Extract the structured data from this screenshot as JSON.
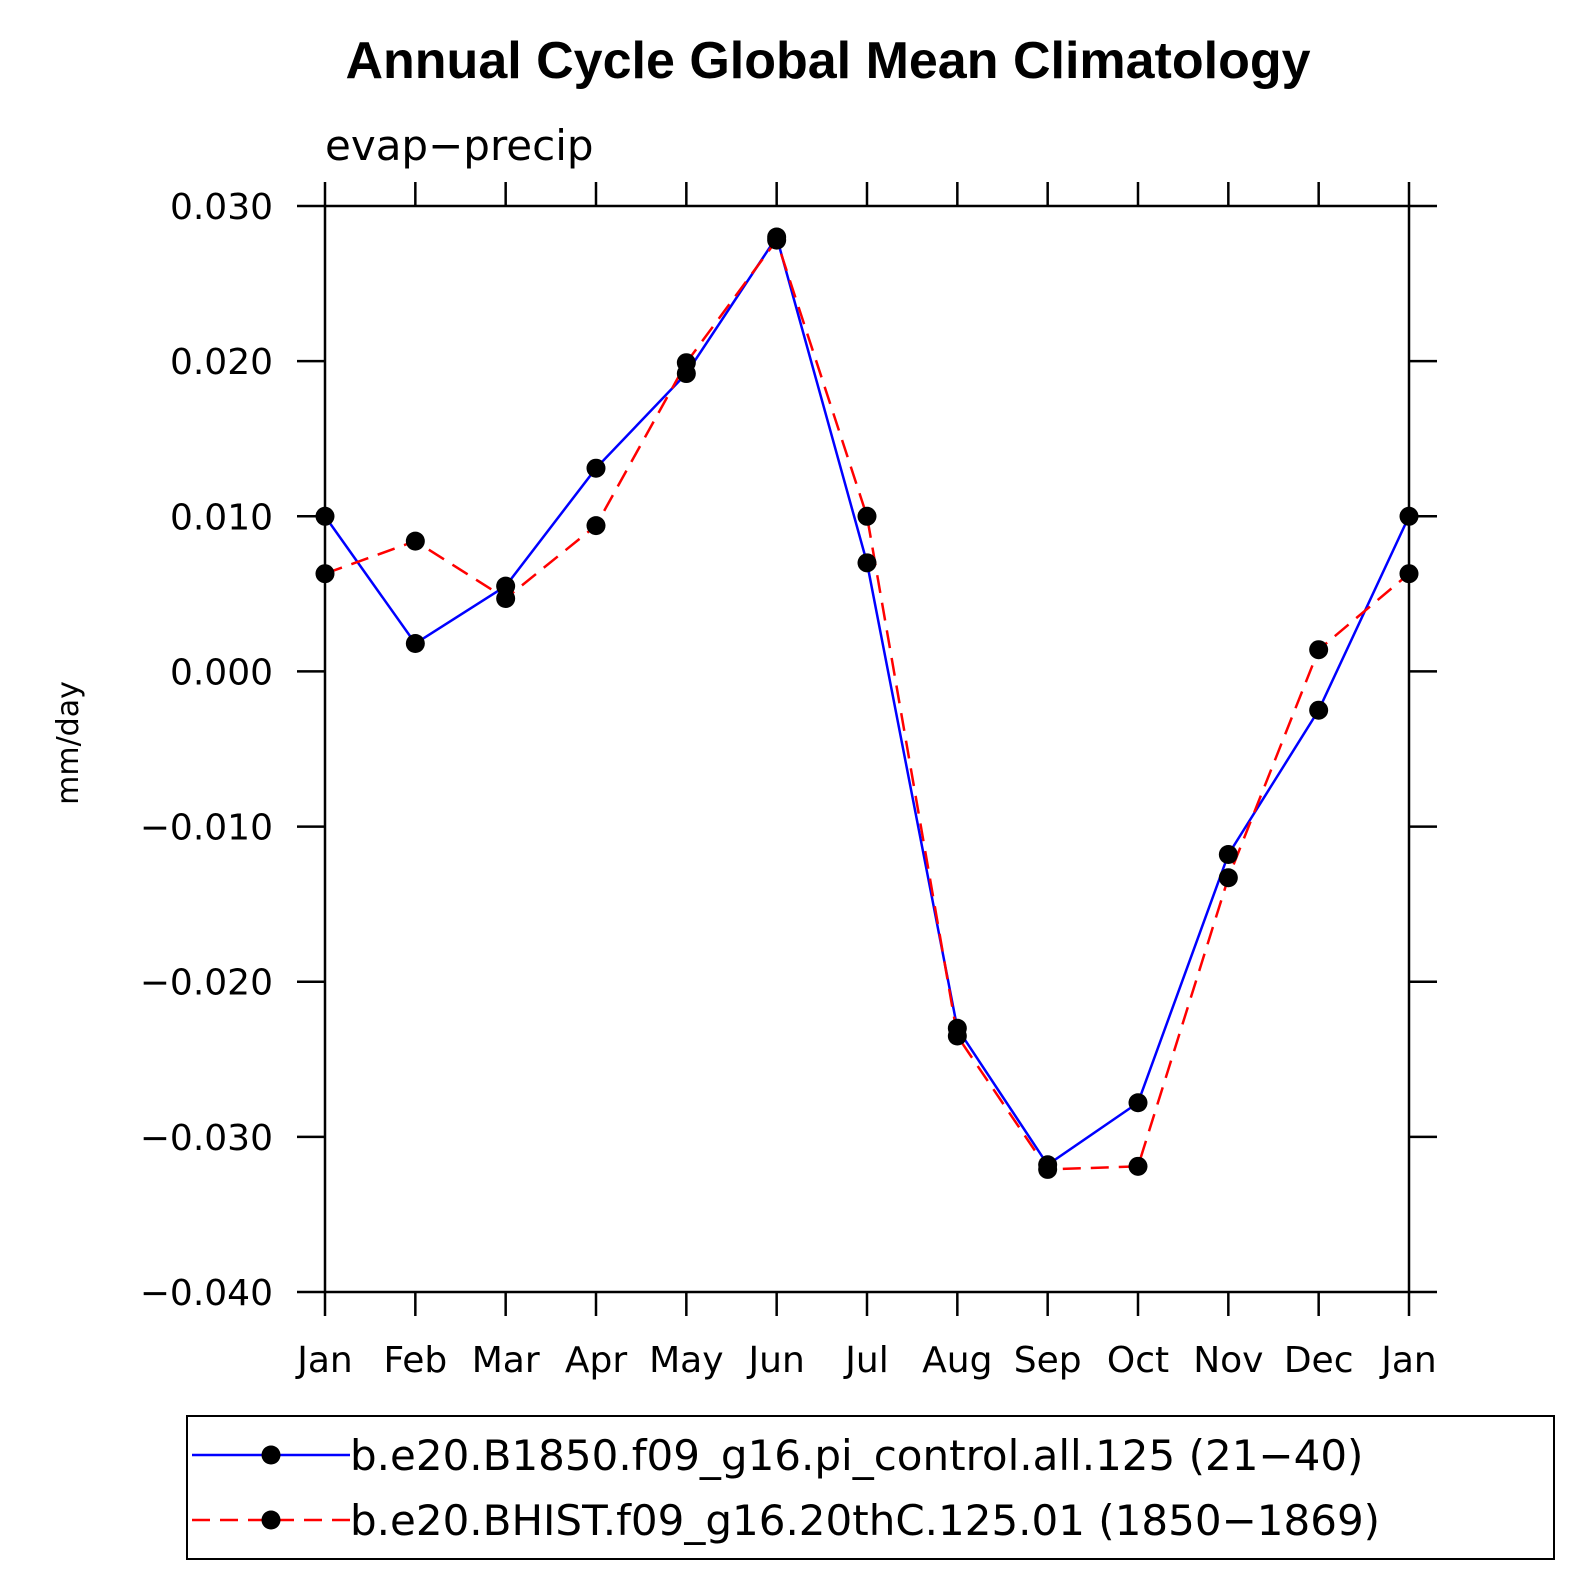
{
  "chart_data": {
    "type": "line",
    "title": "Annual Cycle Global Mean Climatology",
    "subtitle": "evap−precip",
    "xlabel": "",
    "ylabel": "mm/day",
    "categories": [
      "Jan",
      "Feb",
      "Mar",
      "Apr",
      "May",
      "Jun",
      "Jul",
      "Aug",
      "Sep",
      "Oct",
      "Nov",
      "Dec",
      "Jan"
    ],
    "ylim": [
      -0.04,
      0.03
    ],
    "yticks": [
      0.03,
      0.02,
      0.01,
      0.0,
      -0.01,
      -0.02,
      -0.03,
      -0.04
    ],
    "ytick_labels": [
      "0.030",
      "0.020",
      "0.010",
      "0.000",
      "−0.010",
      "−0.020",
      "−0.030",
      "−0.040"
    ],
    "series": [
      {
        "name": "b.e20.B1850.f09_g16.pi_control.all.125 (21−40)",
        "color": "#0000ff",
        "line_style": "solid",
        "values": [
          0.01,
          0.0018,
          0.0055,
          0.0131,
          0.0192,
          0.028,
          0.007,
          -0.023,
          -0.0318,
          -0.0278,
          -0.0118,
          -0.0025,
          0.01
        ]
      },
      {
        "name": "b.e20.BHIST.f09_g16.20thC.125.01 (1850−1869)",
        "color": "#ff0000",
        "line_style": "dashed",
        "values": [
          0.0063,
          0.0084,
          0.0047,
          0.0094,
          0.0199,
          0.0278,
          0.01,
          -0.0235,
          -0.0321,
          -0.0319,
          -0.0133,
          0.0014,
          0.0063
        ]
      }
    ],
    "marker_color": "#000000",
    "legend_position": "bottom"
  }
}
